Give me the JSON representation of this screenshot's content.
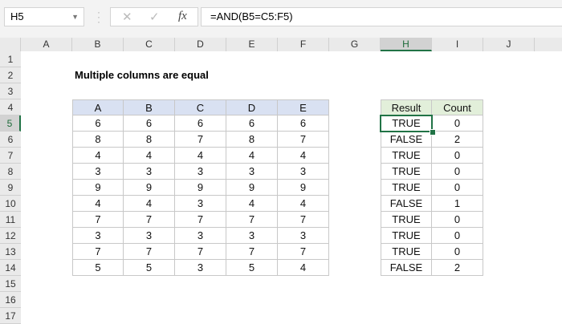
{
  "name_box": "H5",
  "formula": "=AND(B5=C5:F5)",
  "formula_icons": [
    "cancel-icon",
    "enter-icon",
    "function-icon"
  ],
  "columns": [
    "A",
    "B",
    "C",
    "D",
    "E",
    "F",
    "G",
    "H",
    "I",
    "J"
  ],
  "rows": [
    "1",
    "2",
    "3",
    "4",
    "5",
    "6",
    "7",
    "8",
    "9",
    "10",
    "11",
    "12",
    "13",
    "14",
    "15",
    "16",
    "17"
  ],
  "selected_cell": {
    "column": "H",
    "row": "5"
  },
  "title": "Multiple columns are equal",
  "table": {
    "headers": [
      "A",
      "B",
      "C",
      "D",
      "E"
    ],
    "header_color": "#d9e1f2",
    "rows": [
      [
        6,
        6,
        6,
        6,
        6
      ],
      [
        8,
        8,
        7,
        8,
        7
      ],
      [
        4,
        4,
        4,
        4,
        4
      ],
      [
        3,
        3,
        3,
        3,
        3
      ],
      [
        9,
        9,
        9,
        9,
        9
      ],
      [
        4,
        4,
        3,
        4,
        4
      ],
      [
        7,
        7,
        7,
        7,
        7
      ],
      [
        3,
        3,
        3,
        3,
        3
      ],
      [
        7,
        7,
        7,
        7,
        7
      ],
      [
        5,
        5,
        3,
        5,
        4
      ]
    ]
  },
  "results": {
    "headers": [
      "Result",
      "Count"
    ],
    "header_color": "#e2efda",
    "rows": [
      [
        "TRUE",
        0
      ],
      [
        "FALSE",
        2
      ],
      [
        "TRUE",
        0
      ],
      [
        "TRUE",
        0
      ],
      [
        "TRUE",
        0
      ],
      [
        "FALSE",
        1
      ],
      [
        "TRUE",
        0
      ],
      [
        "TRUE",
        0
      ],
      [
        "TRUE",
        0
      ],
      [
        "FALSE",
        2
      ]
    ]
  }
}
